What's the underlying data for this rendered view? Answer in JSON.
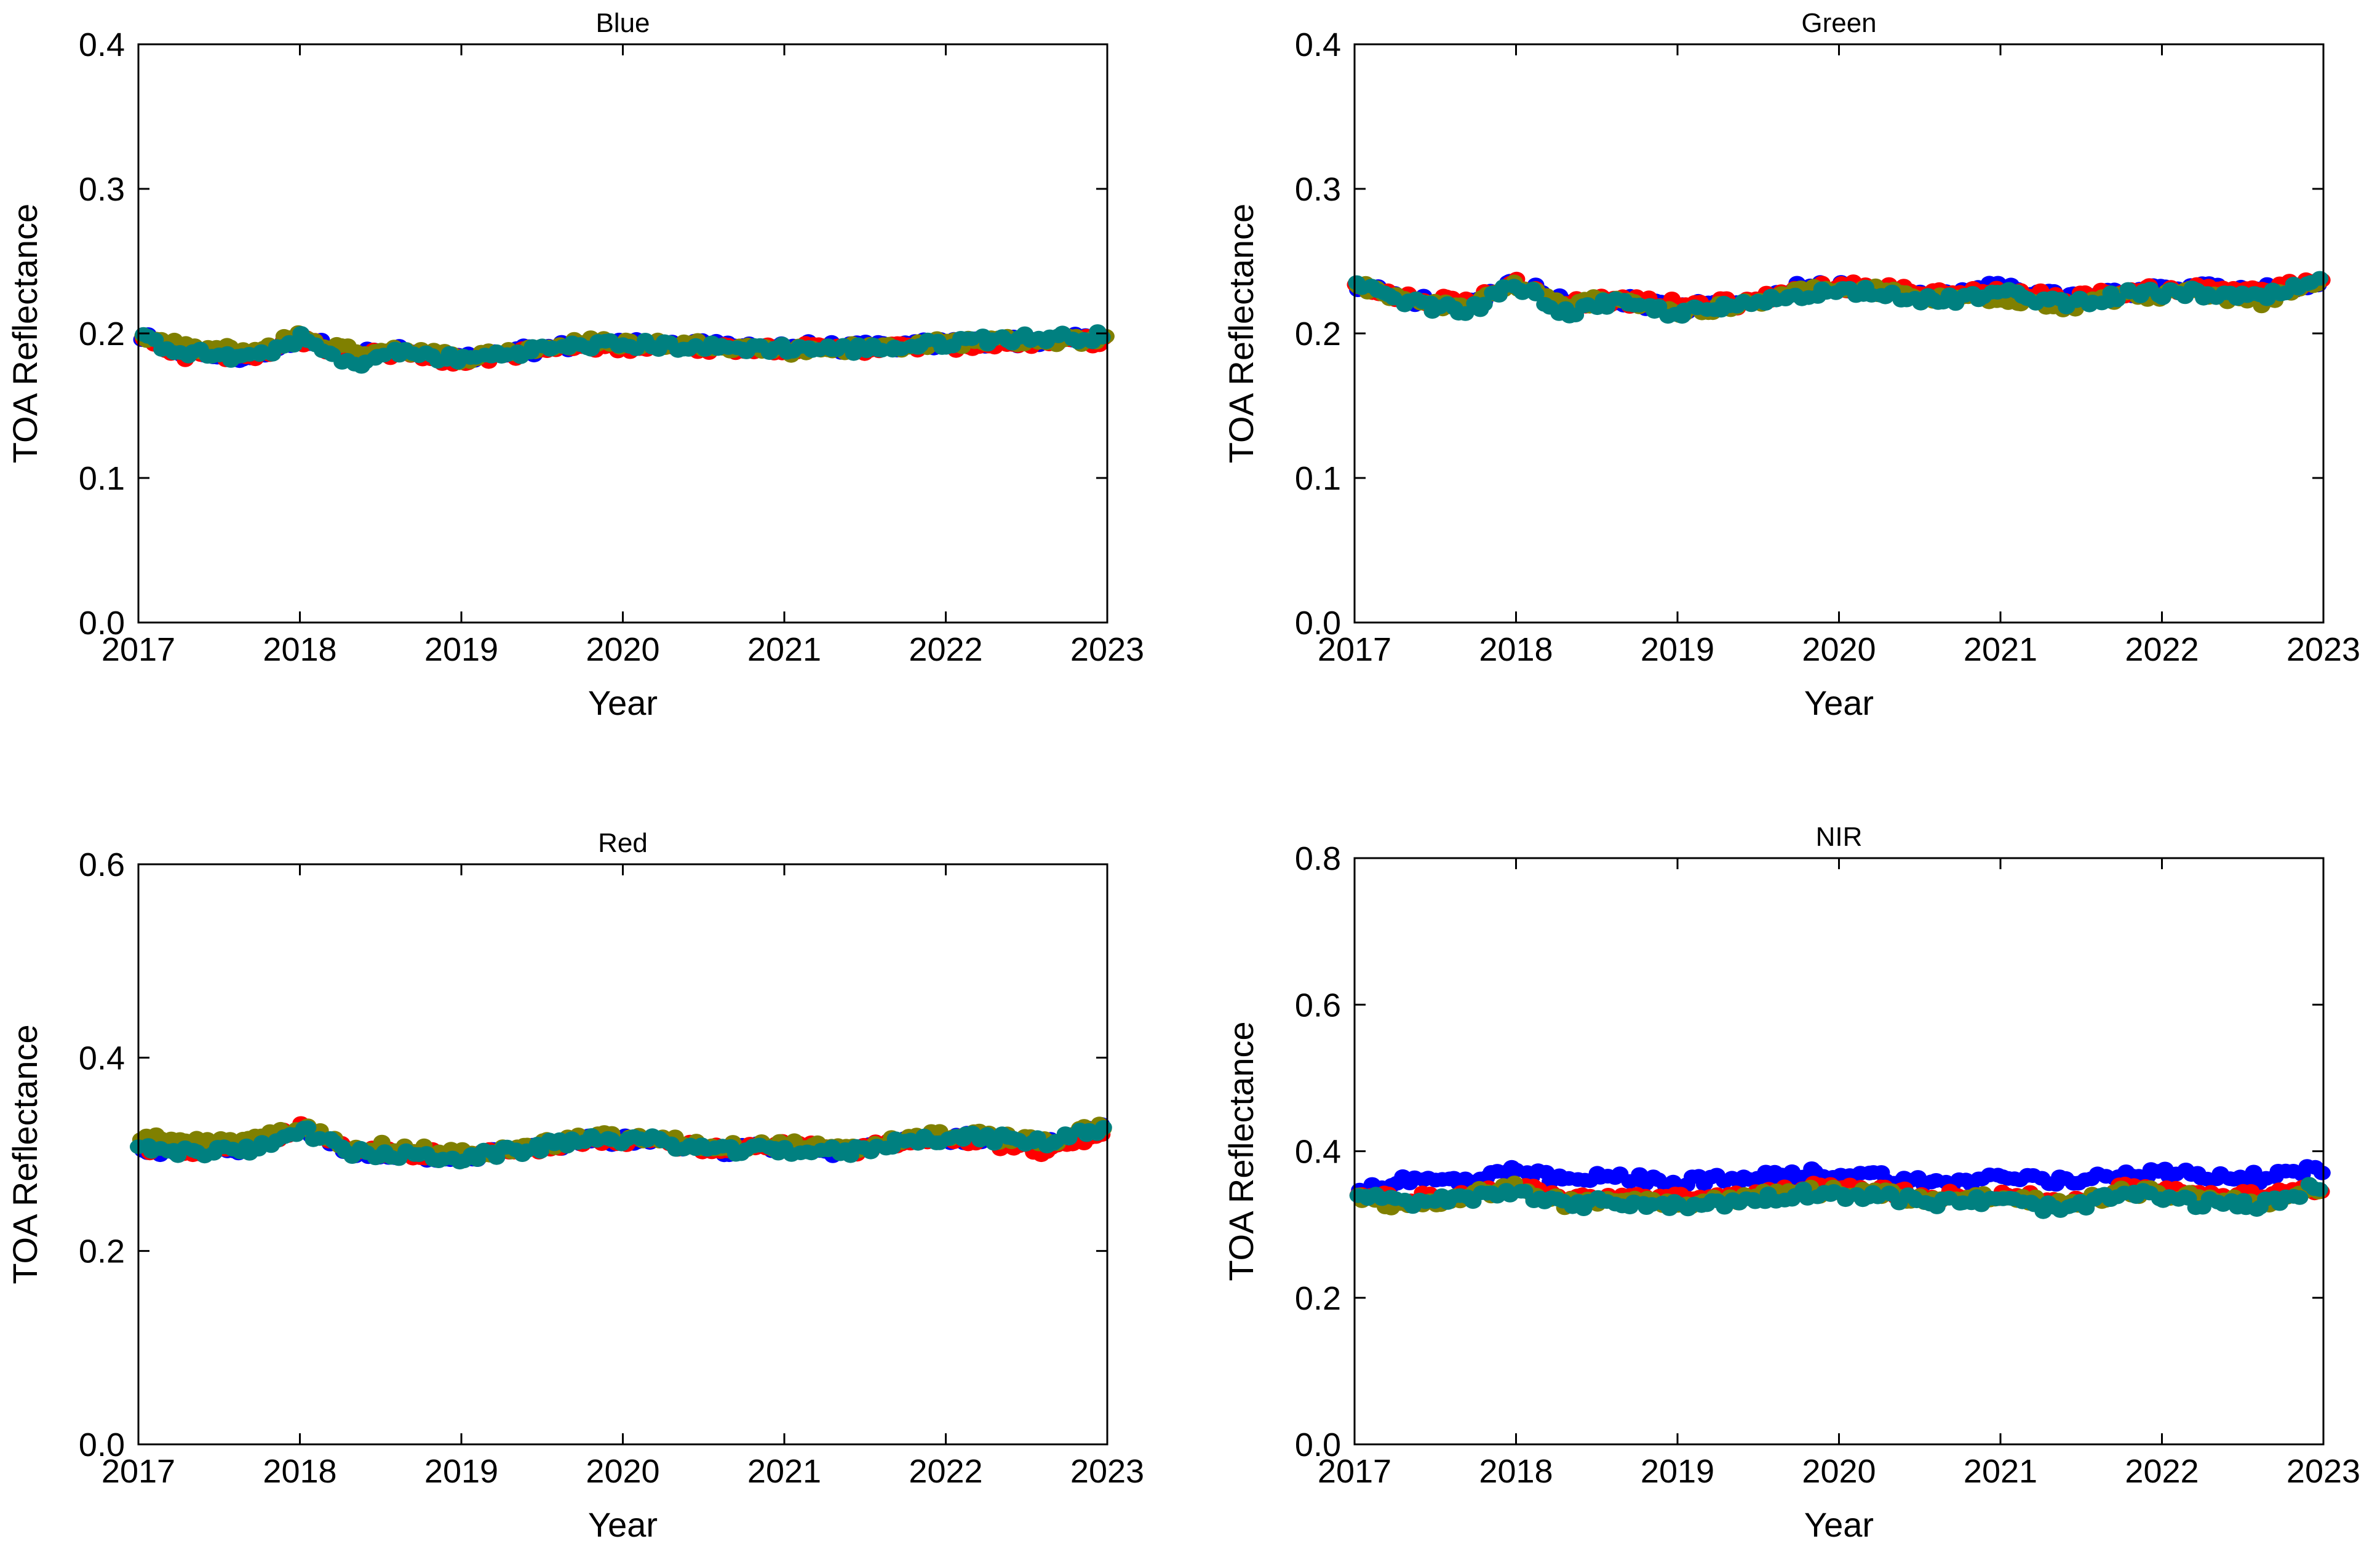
{
  "chart_data": [
    {
      "type": "scatter",
      "title": "Blue",
      "xlabel": "Year",
      "ylabel": "TOA Reflectance",
      "xlim": [
        2017,
        2023
      ],
      "ylim": [
        0.0,
        0.4
      ],
      "xticks": [
        "2017",
        "2018",
        "2019",
        "2020",
        "2021",
        "2022",
        "2023"
      ],
      "yticks": [
        "0.0",
        "0.1",
        "0.2",
        "0.3",
        "0.4"
      ],
      "series_colors": [
        "#0000ff",
        "#ff0000",
        "#808000",
        "#008080"
      ],
      "knots": [
        [
          [
            2017.0,
            0.198
          ],
          [
            2017.3,
            0.186
          ],
          [
            2017.7,
            0.183
          ],
          [
            2018.0,
            0.197
          ],
          [
            2018.3,
            0.186
          ],
          [
            2018.6,
            0.188
          ],
          [
            2019.0,
            0.182
          ],
          [
            2019.4,
            0.188
          ],
          [
            2019.8,
            0.193
          ],
          [
            2020.2,
            0.193
          ],
          [
            2020.6,
            0.191
          ],
          [
            2021.0,
            0.192
          ],
          [
            2021.4,
            0.19
          ],
          [
            2021.8,
            0.192
          ],
          [
            2022.2,
            0.194
          ],
          [
            2022.6,
            0.195
          ],
          [
            2023.0,
            0.197
          ]
        ],
        [
          [
            2017.0,
            0.196
          ],
          [
            2017.3,
            0.185
          ],
          [
            2017.7,
            0.184
          ],
          [
            2018.0,
            0.196
          ],
          [
            2018.3,
            0.185
          ],
          [
            2018.6,
            0.186
          ],
          [
            2019.0,
            0.181
          ],
          [
            2019.4,
            0.187
          ],
          [
            2019.8,
            0.191
          ],
          [
            2020.2,
            0.191
          ],
          [
            2020.6,
            0.19
          ],
          [
            2021.0,
            0.19
          ],
          [
            2021.4,
            0.189
          ],
          [
            2021.8,
            0.191
          ],
          [
            2022.2,
            0.192
          ],
          [
            2022.6,
            0.194
          ],
          [
            2023.0,
            0.195
          ]
        ],
        [
          [
            2017.0,
            0.198
          ],
          [
            2017.3,
            0.19
          ],
          [
            2017.7,
            0.188
          ],
          [
            2018.0,
            0.199
          ],
          [
            2018.3,
            0.188
          ],
          [
            2018.6,
            0.19
          ],
          [
            2019.0,
            0.183
          ],
          [
            2019.4,
            0.189
          ],
          [
            2019.8,
            0.194
          ],
          [
            2020.2,
            0.193
          ],
          [
            2020.6,
            0.192
          ],
          [
            2021.0,
            0.188
          ],
          [
            2021.4,
            0.19
          ],
          [
            2021.8,
            0.192
          ],
          [
            2022.2,
            0.195
          ],
          [
            2022.6,
            0.195
          ],
          [
            2023.0,
            0.196
          ]
        ],
        [
          [
            2017.0,
            0.197
          ],
          [
            2017.3,
            0.187
          ],
          [
            2017.7,
            0.182
          ],
          [
            2018.0,
            0.197
          ],
          [
            2018.3,
            0.178
          ],
          [
            2018.6,
            0.187
          ],
          [
            2019.0,
            0.182
          ],
          [
            2019.4,
            0.188
          ],
          [
            2019.8,
            0.192
          ],
          [
            2020.2,
            0.192
          ],
          [
            2020.6,
            0.19
          ],
          [
            2021.0,
            0.19
          ],
          [
            2021.4,
            0.189
          ],
          [
            2021.8,
            0.191
          ],
          [
            2022.2,
            0.196
          ],
          [
            2022.6,
            0.197
          ],
          [
            2023.0,
            0.198
          ]
        ]
      ]
    },
    {
      "type": "scatter",
      "title": "Green",
      "xlabel": "Year",
      "ylabel": "TOA Reflectance",
      "xlim": [
        2017,
        2023
      ],
      "ylim": [
        0.0,
        0.4
      ],
      "xticks": [
        "2017",
        "2018",
        "2019",
        "2020",
        "2021",
        "2022",
        "2023"
      ],
      "yticks": [
        "0.0",
        "0.1",
        "0.2",
        "0.3",
        "0.4"
      ],
      "series_colors": [
        "#0000ff",
        "#ff0000",
        "#808000",
        "#008080"
      ],
      "knots": [
        [
          [
            2017.0,
            0.234
          ],
          [
            2017.3,
            0.224
          ],
          [
            2017.7,
            0.22
          ],
          [
            2018.0,
            0.236
          ],
          [
            2018.3,
            0.222
          ],
          [
            2018.6,
            0.224
          ],
          [
            2019.0,
            0.217
          ],
          [
            2019.4,
            0.222
          ],
          [
            2019.8,
            0.233
          ],
          [
            2020.2,
            0.232
          ],
          [
            2020.6,
            0.226
          ],
          [
            2021.0,
            0.233
          ],
          [
            2021.4,
            0.225
          ],
          [
            2021.8,
            0.229
          ],
          [
            2022.2,
            0.232
          ],
          [
            2022.6,
            0.23
          ],
          [
            2023.0,
            0.236
          ]
        ],
        [
          [
            2017.0,
            0.232
          ],
          [
            2017.3,
            0.225
          ],
          [
            2017.7,
            0.222
          ],
          [
            2018.0,
            0.235
          ],
          [
            2018.3,
            0.221
          ],
          [
            2018.6,
            0.223
          ],
          [
            2019.0,
            0.22
          ],
          [
            2019.4,
            0.221
          ],
          [
            2019.8,
            0.231
          ],
          [
            2020.2,
            0.233
          ],
          [
            2020.6,
            0.227
          ],
          [
            2021.0,
            0.23
          ],
          [
            2021.4,
            0.224
          ],
          [
            2021.8,
            0.229
          ],
          [
            2022.2,
            0.231
          ],
          [
            2022.6,
            0.231
          ],
          [
            2023.0,
            0.235
          ]
        ],
        [
          [
            2017.0,
            0.235
          ],
          [
            2017.3,
            0.222
          ],
          [
            2017.7,
            0.219
          ],
          [
            2018.0,
            0.234
          ],
          [
            2018.3,
            0.218
          ],
          [
            2018.6,
            0.226
          ],
          [
            2019.0,
            0.214
          ],
          [
            2019.4,
            0.219
          ],
          [
            2019.8,
            0.23
          ],
          [
            2020.2,
            0.23
          ],
          [
            2020.6,
            0.224
          ],
          [
            2021.0,
            0.225
          ],
          [
            2021.4,
            0.219
          ],
          [
            2021.8,
            0.226
          ],
          [
            2022.2,
            0.228
          ],
          [
            2022.6,
            0.222
          ],
          [
            2023.0,
            0.234
          ]
        ],
        [
          [
            2017.0,
            0.233
          ],
          [
            2017.3,
            0.222
          ],
          [
            2017.7,
            0.215
          ],
          [
            2018.0,
            0.234
          ],
          [
            2018.3,
            0.214
          ],
          [
            2018.6,
            0.221
          ],
          [
            2019.0,
            0.214
          ],
          [
            2019.4,
            0.219
          ],
          [
            2019.8,
            0.228
          ],
          [
            2020.2,
            0.23
          ],
          [
            2020.6,
            0.222
          ],
          [
            2021.0,
            0.228
          ],
          [
            2021.4,
            0.221
          ],
          [
            2021.8,
            0.227
          ],
          [
            2022.2,
            0.228
          ],
          [
            2022.6,
            0.224
          ],
          [
            2023.0,
            0.236
          ]
        ]
      ]
    },
    {
      "type": "scatter",
      "title": "Red",
      "xlabel": "Year",
      "ylabel": "TOA Reflectance",
      "xlim": [
        2017,
        2023
      ],
      "ylim": [
        0.0,
        0.6
      ],
      "xticks": [
        "2017",
        "2018",
        "2019",
        "2020",
        "2021",
        "2022",
        "2023"
      ],
      "yticks": [
        "0.0",
        "0.2",
        "0.4",
        "0.6"
      ],
      "series_colors": [
        "#0000ff",
        "#ff0000",
        "#808000",
        "#008080"
      ],
      "knots": [
        [
          [
            2017.0,
            0.305
          ],
          [
            2017.3,
            0.302
          ],
          [
            2017.7,
            0.308
          ],
          [
            2018.0,
            0.326
          ],
          [
            2018.3,
            0.303
          ],
          [
            2018.6,
            0.3
          ],
          [
            2019.0,
            0.297
          ],
          [
            2019.4,
            0.305
          ],
          [
            2019.8,
            0.315
          ],
          [
            2020.2,
            0.313
          ],
          [
            2020.6,
            0.303
          ],
          [
            2021.0,
            0.309
          ],
          [
            2021.4,
            0.302
          ],
          [
            2021.8,
            0.316
          ],
          [
            2022.2,
            0.317
          ],
          [
            2022.6,
            0.309
          ],
          [
            2023.0,
            0.328
          ]
        ],
        [
          [
            2017.0,
            0.308
          ],
          [
            2017.3,
            0.303
          ],
          [
            2017.7,
            0.309
          ],
          [
            2018.0,
            0.327
          ],
          [
            2018.3,
            0.303
          ],
          [
            2018.6,
            0.302
          ],
          [
            2019.0,
            0.298
          ],
          [
            2019.4,
            0.304
          ],
          [
            2019.8,
            0.317
          ],
          [
            2020.2,
            0.314
          ],
          [
            2020.6,
            0.304
          ],
          [
            2021.0,
            0.309
          ],
          [
            2021.4,
            0.303
          ],
          [
            2021.8,
            0.317
          ],
          [
            2022.2,
            0.316
          ],
          [
            2022.6,
            0.301
          ],
          [
            2023.0,
            0.326
          ]
        ],
        [
          [
            2017.0,
            0.318
          ],
          [
            2017.3,
            0.312
          ],
          [
            2017.7,
            0.313
          ],
          [
            2018.0,
            0.328
          ],
          [
            2018.3,
            0.31
          ],
          [
            2018.6,
            0.306
          ],
          [
            2019.0,
            0.3
          ],
          [
            2019.4,
            0.307
          ],
          [
            2019.8,
            0.318
          ],
          [
            2020.2,
            0.316
          ],
          [
            2020.6,
            0.307
          ],
          [
            2021.0,
            0.31
          ],
          [
            2021.4,
            0.304
          ],
          [
            2021.8,
            0.319
          ],
          [
            2022.2,
            0.32
          ],
          [
            2022.6,
            0.312
          ],
          [
            2023.0,
            0.33
          ]
        ],
        [
          [
            2017.0,
            0.306
          ],
          [
            2017.3,
            0.302
          ],
          [
            2017.7,
            0.305
          ],
          [
            2018.0,
            0.327
          ],
          [
            2018.3,
            0.302
          ],
          [
            2018.6,
            0.299
          ],
          [
            2019.0,
            0.296
          ],
          [
            2019.4,
            0.305
          ],
          [
            2019.8,
            0.317
          ],
          [
            2020.2,
            0.314
          ],
          [
            2020.6,
            0.303
          ],
          [
            2021.0,
            0.305
          ],
          [
            2021.4,
            0.302
          ],
          [
            2021.8,
            0.316
          ],
          [
            2022.2,
            0.318
          ],
          [
            2022.6,
            0.312
          ],
          [
            2023.0,
            0.329
          ]
        ]
      ]
    },
    {
      "type": "scatter",
      "title": "NIR",
      "xlabel": "Year",
      "ylabel": "TOA Reflectance",
      "xlim": [
        2017,
        2023
      ],
      "ylim": [
        0.0,
        0.8
      ],
      "xticks": [
        "2017",
        "2018",
        "2019",
        "2020",
        "2021",
        "2022",
        "2023"
      ],
      "yticks": [
        "0.0",
        "0.2",
        "0.4",
        "0.6",
        "0.8"
      ],
      "series_colors": [
        "#0000ff",
        "#ff0000",
        "#808000",
        "#008080"
      ],
      "knots": [
        [
          [
            2017.0,
            0.345
          ],
          [
            2017.3,
            0.36
          ],
          [
            2017.7,
            0.36
          ],
          [
            2018.0,
            0.372
          ],
          [
            2018.3,
            0.36
          ],
          [
            2018.6,
            0.365
          ],
          [
            2019.0,
            0.358
          ],
          [
            2019.4,
            0.362
          ],
          [
            2019.8,
            0.37
          ],
          [
            2020.2,
            0.368
          ],
          [
            2020.6,
            0.355
          ],
          [
            2021.0,
            0.365
          ],
          [
            2021.4,
            0.358
          ],
          [
            2021.8,
            0.372
          ],
          [
            2022.2,
            0.368
          ],
          [
            2022.6,
            0.364
          ],
          [
            2023.0,
            0.375
          ]
        ],
        [
          [
            2017.0,
            0.345
          ],
          [
            2017.3,
            0.335
          ],
          [
            2017.7,
            0.34
          ],
          [
            2018.0,
            0.352
          ],
          [
            2018.3,
            0.335
          ],
          [
            2018.6,
            0.338
          ],
          [
            2019.0,
            0.335
          ],
          [
            2019.4,
            0.34
          ],
          [
            2019.8,
            0.35
          ],
          [
            2020.2,
            0.347
          ],
          [
            2020.6,
            0.338
          ],
          [
            2021.0,
            0.342
          ],
          [
            2021.4,
            0.33
          ],
          [
            2021.8,
            0.35
          ],
          [
            2022.2,
            0.345
          ],
          [
            2022.6,
            0.338
          ],
          [
            2023.0,
            0.35
          ]
        ],
        [
          [
            2017.0,
            0.34
          ],
          [
            2017.3,
            0.325
          ],
          [
            2017.7,
            0.34
          ],
          [
            2018.0,
            0.35
          ],
          [
            2018.3,
            0.33
          ],
          [
            2018.6,
            0.336
          ],
          [
            2019.0,
            0.33
          ],
          [
            2019.4,
            0.336
          ],
          [
            2019.8,
            0.346
          ],
          [
            2020.2,
            0.344
          ],
          [
            2020.6,
            0.334
          ],
          [
            2021.0,
            0.338
          ],
          [
            2021.4,
            0.326
          ],
          [
            2021.8,
            0.346
          ],
          [
            2022.2,
            0.338
          ],
          [
            2022.6,
            0.33
          ],
          [
            2023.0,
            0.345
          ]
        ],
        [
          [
            2017.0,
            0.34
          ],
          [
            2017.3,
            0.33
          ],
          [
            2017.7,
            0.335
          ],
          [
            2018.0,
            0.348
          ],
          [
            2018.3,
            0.325
          ],
          [
            2018.6,
            0.332
          ],
          [
            2019.0,
            0.325
          ],
          [
            2019.4,
            0.332
          ],
          [
            2019.8,
            0.343
          ],
          [
            2020.2,
            0.34
          ],
          [
            2020.6,
            0.33
          ],
          [
            2021.0,
            0.333
          ],
          [
            2021.4,
            0.32
          ],
          [
            2021.8,
            0.343
          ],
          [
            2022.2,
            0.33
          ],
          [
            2022.6,
            0.325
          ],
          [
            2023.0,
            0.355
          ]
        ]
      ]
    }
  ]
}
